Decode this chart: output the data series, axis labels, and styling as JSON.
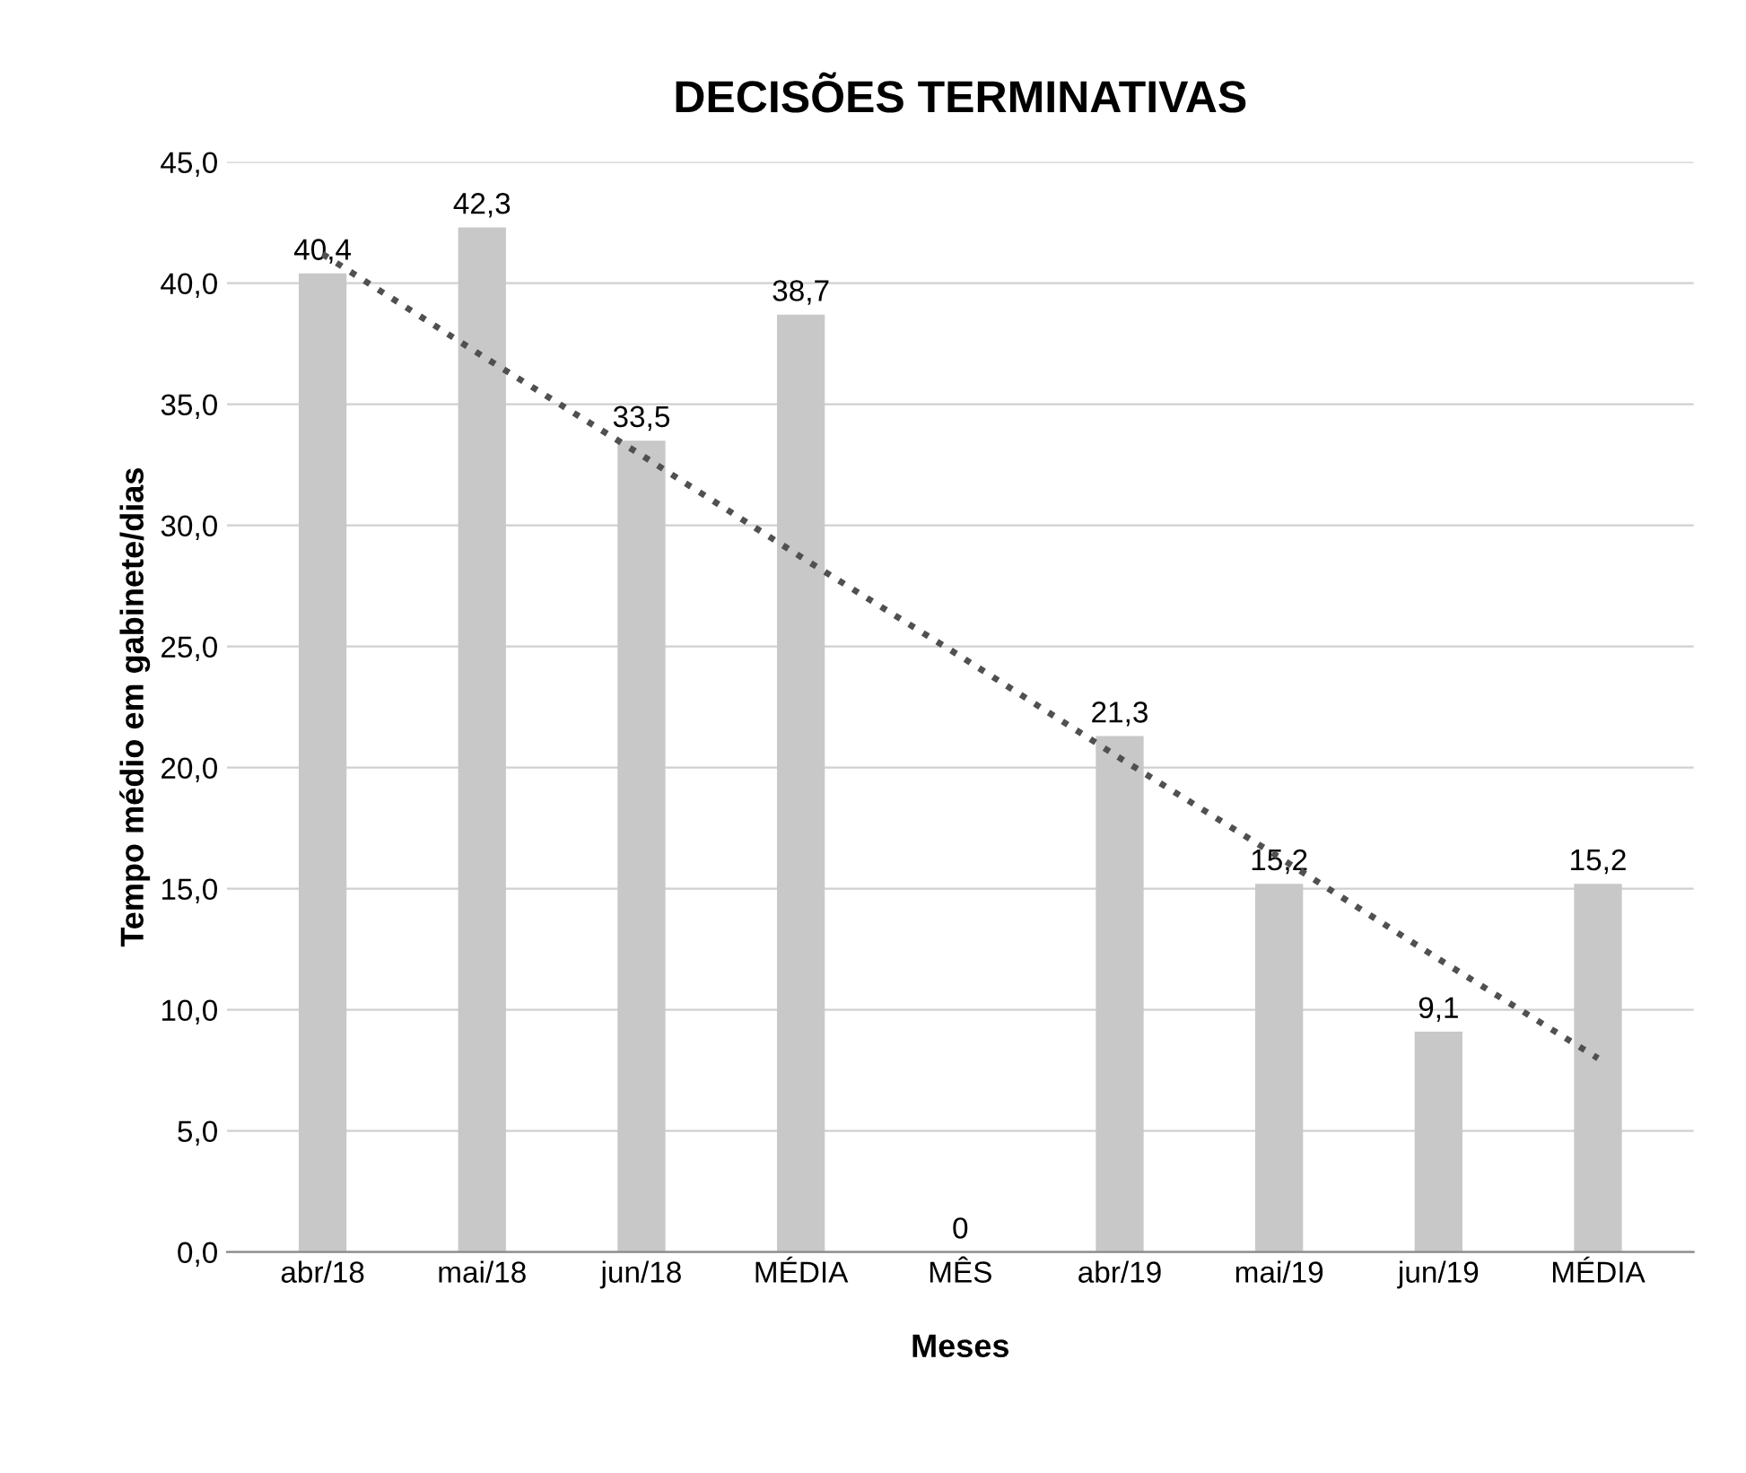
{
  "chart_data": {
    "type": "bar",
    "title": "DECISÕES TERMINATIVAS",
    "xlabel": "Meses",
    "ylabel": "Tempo médio em gabinete/dias",
    "categories": [
      "abr/18",
      "mai/18",
      "jun/18",
      "MÉDIA",
      "MÊS",
      "abr/19",
      "mai/19",
      "jun/19",
      "MÉDIA"
    ],
    "series": [
      {
        "color": "#c8c8c8",
        "values": [
          40.4,
          42.3,
          33.5,
          38.7,
          0,
          21.3,
          15.2,
          9.1,
          15.2
        ],
        "value_labels": [
          "40,4",
          "42,3",
          "33,5",
          "38,7",
          "0",
          "21,3",
          "15,2",
          "9,1",
          "15,2"
        ]
      },
      {
        "type": "line",
        "color": "#505050",
        "line_style": "dotted",
        "values": [
          41.2,
          37.0,
          32.9,
          28.7,
          24.6,
          20.4,
          16.3,
          12.1,
          8.0
        ]
      }
    ],
    "ylim": [
      0,
      45
    ],
    "yticks": [
      {
        "value": 0,
        "label": "0,0"
      },
      {
        "value": 5,
        "label": "5,0"
      },
      {
        "value": 10,
        "label": "10,0"
      },
      {
        "value": 15,
        "label": "15,0"
      },
      {
        "value": 20,
        "label": "20,0"
      },
      {
        "value": 25,
        "label": "25,0"
      },
      {
        "value": 30,
        "label": "30,0"
      },
      {
        "value": 35,
        "label": "35,0"
      },
      {
        "value": 40,
        "label": "40,0"
      },
      {
        "value": 45,
        "label": "45,0"
      }
    ],
    "grid": "y"
  }
}
